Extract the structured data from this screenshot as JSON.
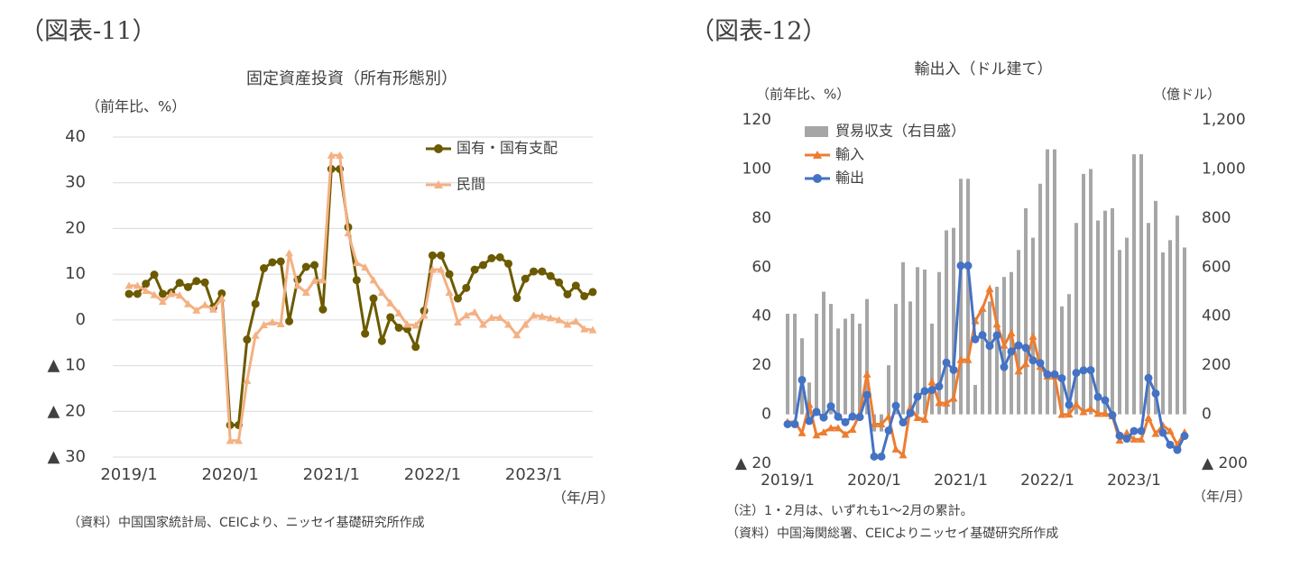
{
  "chart_data": [
    {
      "type": "line",
      "figure_label": "（図表-11）",
      "title": "固定資産投資（所有形態別）",
      "ylabel": "（前年比、%）",
      "xlabel": "（年/月）",
      "source": "（資料）中国国家統計局、CEICより、ニッセイ基礎研究所作成",
      "categories": [
        "2019/1",
        null,
        null,
        null,
        null,
        null,
        null,
        null,
        null,
        null,
        null,
        null,
        "2020/1",
        null,
        null,
        null,
        null,
        null,
        null,
        null,
        null,
        null,
        null,
        null,
        "2021/1",
        null,
        null,
        null,
        null,
        null,
        null,
        null,
        null,
        null,
        null,
        null,
        "2022/1",
        null,
        null,
        null,
        null,
        null,
        null,
        null,
        null,
        null,
        null,
        null,
        "2023/1",
        null,
        null,
        null,
        null,
        null,
        null,
        null
      ],
      "ylim": [
        -30,
        40
      ],
      "yticks": [
        40,
        30,
        20,
        10,
        0,
        {
          "value": -10,
          "label": "▲ 10"
        },
        {
          "value": -20,
          "label": "▲ 20"
        },
        {
          "value": -30,
          "label": "▲ 30"
        }
      ],
      "grid": true,
      "legend": "upper right",
      "series": [
        {
          "name": "国有・国有支配",
          "color": "#6b5a00",
          "marker": "circle",
          "values": [
            5.7,
            5.7,
            7.9,
            9.9,
            5.7,
            6.0,
            8.1,
            7.2,
            8.5,
            8.2,
            2.8,
            5.8,
            -23,
            -23,
            -4.3,
            3.5,
            11.3,
            12.6,
            12.8,
            -0.3,
            8.8,
            11.6,
            12.0,
            2.3,
            33,
            33,
            20.3,
            8.7,
            -3.0,
            4.7,
            -4.6,
            0.6,
            -1.7,
            -2.0,
            -5.9,
            2.0,
            14.1,
            14.1,
            10.0,
            4.7,
            7.0,
            11.0,
            12.0,
            13.5,
            13.7,
            12.3,
            4.8,
            9.0,
            10.6,
            10.6,
            9.6,
            8.2,
            5.6,
            7.5,
            5.2,
            6.1
          ]
        },
        {
          "name": "民間",
          "color": "#f4b183",
          "marker": "triangle",
          "values": [
            7.5,
            7.5,
            6.4,
            5.5,
            4.0,
            5.7,
            5.4,
            3.5,
            2.1,
            3.3,
            2.3,
            4.7,
            -26.4,
            -26.4,
            -13.3,
            -3.4,
            -1.1,
            -0.5,
            -0.9,
            14.6,
            7.5,
            6.0,
            8.6,
            8.7,
            36,
            36,
            19.0,
            12.5,
            11.5,
            8.7,
            6.0,
            3.7,
            1.5,
            -1.0,
            -1.2,
            1.0,
            11.0,
            11.0,
            6.0,
            -0.5,
            1.0,
            1.7,
            -1.0,
            0.5,
            0.5,
            -1.0,
            -3.3,
            -1.0,
            1.0,
            0.8,
            0.4,
            0.0,
            -1.0,
            -0.3,
            -2.0,
            -2.2
          ]
        }
      ]
    },
    {
      "type": "bar_line",
      "figure_label": "（図表-12）",
      "title": "輸出入（ドル建て）",
      "ylabel": "（前年比、%）",
      "y2label": "（億ドル）",
      "xlabel": "（年/月）",
      "notes": [
        "（注）1・2月は、いずれも1～2月の累計。",
        "（資料）中国海関総署、CEICよりニッセイ基礎研究所作成"
      ],
      "categories": [
        "2019/1",
        null,
        null,
        null,
        null,
        null,
        null,
        null,
        null,
        null,
        null,
        null,
        "2020/1",
        null,
        null,
        null,
        null,
        null,
        null,
        null,
        null,
        null,
        null,
        null,
        "2021/1",
        null,
        null,
        null,
        null,
        null,
        null,
        null,
        null,
        null,
        null,
        null,
        "2022/1",
        null,
        null,
        null,
        null,
        null,
        null,
        null,
        null,
        null,
        null,
        null,
        "2023/1",
        null,
        null,
        null,
        null,
        null,
        null,
        null
      ],
      "ylim": [
        -20,
        120
      ],
      "yticks": [
        120,
        100,
        80,
        60,
        40,
        20,
        0,
        {
          "value": -20,
          "label": "▲ 20"
        }
      ],
      "y2lim": [
        -200,
        1200
      ],
      "y2ticks": [
        {
          "value": 1200,
          "label": "1,200"
        },
        {
          "value": 1000,
          "label": "1,000"
        },
        800,
        600,
        400,
        200,
        0,
        {
          "value": -200,
          "label": "▲ 200"
        }
      ],
      "grid": false,
      "legend": "upper left",
      "series": [
        {
          "name": "貿易収支（右目盛）",
          "color": "#a6a6a6",
          "kind": "bar",
          "axis": "y2",
          "values": [
            410,
            410,
            310,
            130,
            410,
            500,
            450,
            350,
            390,
            410,
            370,
            470,
            -70,
            -70,
            200,
            450,
            620,
            460,
            600,
            590,
            370,
            580,
            750,
            760,
            960,
            960,
            120,
            430,
            460,
            520,
            560,
            580,
            670,
            840,
            720,
            940,
            1080,
            1080,
            440,
            490,
            780,
            980,
            1000,
            790,
            830,
            840,
            670,
            720,
            1060,
            1060,
            780,
            870,
            660,
            710,
            810,
            680
          ]
        },
        {
          "name": "輸入",
          "color": "#ed7d31",
          "marker": "triangle",
          "values": [
            -3.1,
            -3.1,
            -7.6,
            4.0,
            -8.5,
            -7.3,
            -5.6,
            -5.6,
            -8.2,
            -6.2,
            0.3,
            16.3,
            -4.0,
            -4.0,
            -0.9,
            -14.2,
            -16.6,
            2.7,
            -1.4,
            -2.1,
            13.2,
            4.7,
            4.5,
            6.5,
            22.2,
            22.2,
            38.1,
            43.1,
            51.1,
            36.7,
            28.1,
            33.1,
            17.6,
            20.6,
            31.7,
            19.5,
            15.5,
            15.5,
            -0.1,
            0.0,
            4.1,
            1.0,
            2.3,
            0.3,
            0.3,
            -0.7,
            -10.6,
            -7.5,
            -10.2,
            -10.2,
            -1.4,
            -7.9,
            -4.5,
            -6.8,
            -12.4,
            -7.3
          ]
        },
        {
          "name": "輸出",
          "color": "#4472c4",
          "marker": "circle",
          "values": [
            -4.0,
            -4.0,
            14.0,
            -2.7,
            1.0,
            -1.3,
            3.3,
            -1.0,
            -3.2,
            -0.9,
            -1.1,
            7.9,
            -17.2,
            -17.2,
            -6.6,
            3.5,
            -3.3,
            0.5,
            7.2,
            9.5,
            9.9,
            11.4,
            21.1,
            18.1,
            60.6,
            60.6,
            30.6,
            32.3,
            27.9,
            32.2,
            19.3,
            25.6,
            28.1,
            27.1,
            22.0,
            20.9,
            16.3,
            16.3,
            14.7,
            3.9,
            16.9,
            17.9,
            18.0,
            7.1,
            5.7,
            -0.3,
            -8.7,
            -9.9,
            -6.8,
            -6.8,
            14.8,
            8.5,
            -7.5,
            -12.4,
            -14.5,
            -8.8
          ]
        }
      ]
    }
  ]
}
